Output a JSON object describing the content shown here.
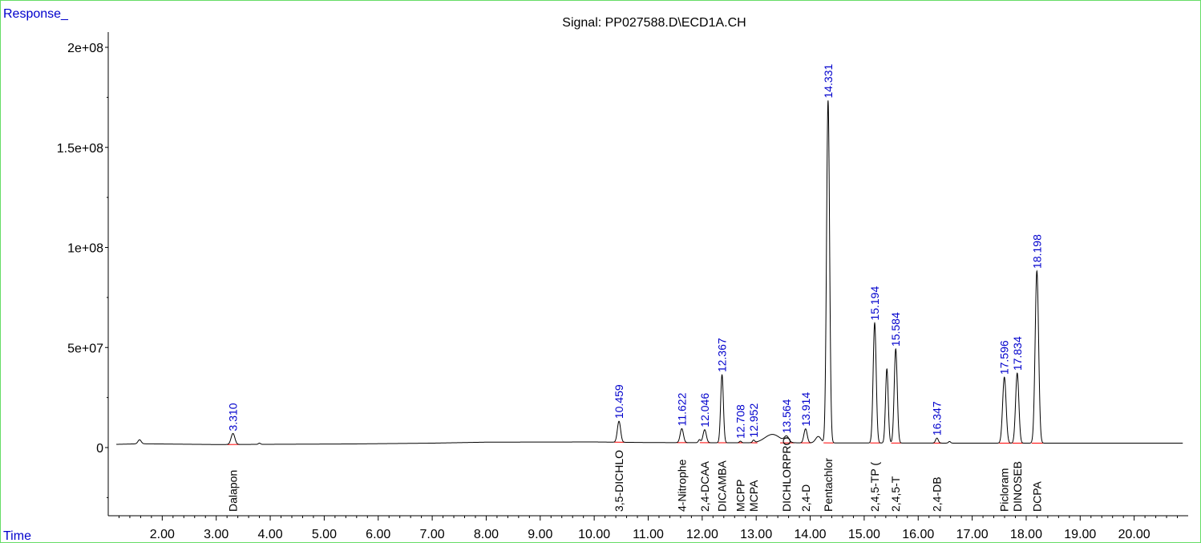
{
  "chart_data": {
    "type": "line",
    "title": "Signal: PP027588.D\\ECD1A.CH",
    "ylabel": "Response_",
    "xlabel": "Time",
    "xlim": [
      1.0,
      21.0
    ],
    "ylim": [
      -35000000,
      206000000
    ],
    "x_ticks": [
      2.0,
      3.0,
      4.0,
      5.0,
      6.0,
      7.0,
      8.0,
      9.0,
      10.0,
      11.0,
      12.0,
      13.0,
      14.0,
      15.0,
      16.0,
      17.0,
      18.0,
      19.0,
      20.0
    ],
    "x_tick_labels": [
      "2.00",
      "3.00",
      "4.00",
      "5.00",
      "6.00",
      "7.00",
      "8.00",
      "9.00",
      "10.00",
      "11.00",
      "12.00",
      "13.00",
      "14.00",
      "15.00",
      "16.00",
      "17.00",
      "18.00",
      "19.00",
      "20.00"
    ],
    "y_ticks": [
      0,
      50000000,
      100000000,
      150000000,
      200000000
    ],
    "y_tick_labels": [
      "0",
      "5e+07",
      "1e+08",
      "1.5e+08",
      "2e+08"
    ],
    "baseline": [
      {
        "x": 1.15,
        "y": 1600000
      },
      {
        "x": 1.6,
        "y": 1900000
      },
      {
        "x": 3.0,
        "y": 1500000
      },
      {
        "x": 5.5,
        "y": 1800000
      },
      {
        "x": 7.0,
        "y": 2200000
      },
      {
        "x": 8.0,
        "y": 2700000
      },
      {
        "x": 10.0,
        "y": 2800000
      },
      {
        "x": 11.0,
        "y": 2500000
      },
      {
        "x": 12.5,
        "y": 2400000
      },
      {
        "x": 15.0,
        "y": 2300000
      },
      {
        "x": 17.0,
        "y": 2200000
      },
      {
        "x": 20.9,
        "y": 2200000
      }
    ],
    "peaks": [
      {
        "rt": 1.58,
        "height": 2000000,
        "width": 0.03,
        "labeled": false
      },
      {
        "rt": 3.31,
        "height": 5500000,
        "width": 0.035,
        "labeled": true,
        "rt_label": "3.310",
        "compound": "Dalapon"
      },
      {
        "rt": 3.8,
        "height": 600000,
        "width": 0.02,
        "labeled": false
      },
      {
        "rt": 10.459,
        "height": 10500000,
        "width": 0.03,
        "labeled": true,
        "rt_label": "10.459",
        "compound": "3,5-DICHLO"
      },
      {
        "rt": 11.622,
        "height": 7000000,
        "width": 0.03,
        "labeled": true,
        "rt_label": "11.622",
        "compound": "4-Nitrophe"
      },
      {
        "rt": 11.95,
        "height": 1500000,
        "width": 0.02,
        "labeled": false
      },
      {
        "rt": 12.046,
        "height": 6500000,
        "width": 0.03,
        "labeled": true,
        "rt_label": "12.046",
        "compound": "2,4-DCAA"
      },
      {
        "rt": 12.367,
        "height": 34000000,
        "width": 0.025,
        "labeled": true,
        "rt_label": "12.367",
        "compound": "DICAMBA"
      },
      {
        "rt": 12.708,
        "height": 800000,
        "width": 0.02,
        "labeled": true,
        "rt_label": "12.708",
        "compound": "MCPP"
      },
      {
        "rt": 12.952,
        "height": 1200000,
        "width": 0.02,
        "labeled": true,
        "rt_label": "12.952",
        "compound": "MCPA"
      },
      {
        "rt": 13.3,
        "height": 4200000,
        "width": 0.14,
        "labeled": false
      },
      {
        "rt": 13.564,
        "height": 2800000,
        "width": 0.04,
        "labeled": true,
        "rt_label": "13.564",
        "compound": "DICHLORPRO"
      },
      {
        "rt": 13.914,
        "height": 7000000,
        "width": 0.03,
        "labeled": true,
        "rt_label": "13.914",
        "compound": "2,4-D"
      },
      {
        "rt": 14.15,
        "height": 3200000,
        "width": 0.05,
        "labeled": false
      },
      {
        "rt": 14.331,
        "height": 171000000,
        "width": 0.028,
        "labeled": true,
        "rt_label": "14.331",
        "compound": "Pentachlor"
      },
      {
        "rt": 15.194,
        "height": 60000000,
        "width": 0.028,
        "labeled": true,
        "rt_label": "15.194",
        "compound": "2,4,5-TP ("
      },
      {
        "rt": 15.42,
        "height": 37000000,
        "width": 0.025,
        "labeled": false
      },
      {
        "rt": 15.584,
        "height": 47000000,
        "width": 0.028,
        "labeled": true,
        "rt_label": "15.584",
        "compound": "2,4,5-T"
      },
      {
        "rt": 16.347,
        "height": 2500000,
        "width": 0.025,
        "labeled": true,
        "rt_label": "16.347",
        "compound": "2,4-DB"
      },
      {
        "rt": 16.58,
        "height": 800000,
        "width": 0.02,
        "labeled": false
      },
      {
        "rt": 17.596,
        "height": 33000000,
        "width": 0.032,
        "labeled": true,
        "rt_label": "17.596",
        "compound": "Picloram"
      },
      {
        "rt": 17.834,
        "height": 35000000,
        "width": 0.03,
        "labeled": true,
        "rt_label": "17.834",
        "compound": "DINOSEB"
      },
      {
        "rt": 18.198,
        "height": 86000000,
        "width": 0.032,
        "labeled": true,
        "rt_label": "18.198",
        "compound": "DCPA"
      }
    ],
    "colors": {
      "trace": "#000000",
      "rt_label": "#0000cc",
      "integration": "#ff0000",
      "axis_label": "#0000cc",
      "frame": "#66dd66"
    }
  }
}
